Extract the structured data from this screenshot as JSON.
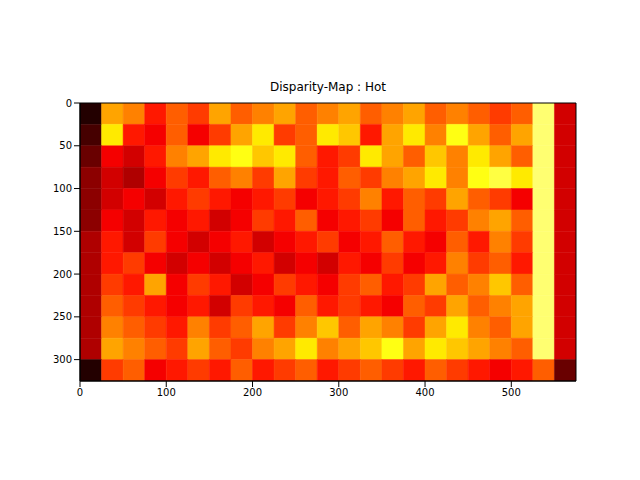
{
  "chart_data": {
    "type": "heatmap",
    "title": "Disparity-Map : Hot",
    "color": "hot",
    "xlim": [
      0,
      575
    ],
    "ylim": [
      325,
      0
    ],
    "xticks": [
      0,
      100,
      200,
      300,
      400,
      500
    ],
    "yticks": [
      0,
      50,
      100,
      150,
      200,
      250,
      300
    ],
    "color_range": [
      0,
      1
    ],
    "cells": [
      [
        0.05,
        0.6,
        0.55,
        0.4,
        0.5,
        0.45,
        0.6,
        0.5,
        0.55,
        0.6,
        0.5,
        0.55,
        0.6,
        0.5,
        0.55,
        0.6,
        0.5,
        0.55,
        0.5,
        0.45,
        0.5,
        0.85,
        0.3
      ],
      [
        0.1,
        0.7,
        0.4,
        0.35,
        0.5,
        0.35,
        0.45,
        0.6,
        0.7,
        0.45,
        0.5,
        0.7,
        0.65,
        0.4,
        0.6,
        0.7,
        0.55,
        0.75,
        0.6,
        0.5,
        0.6,
        0.85,
        0.3
      ],
      [
        0.15,
        0.35,
        0.3,
        0.4,
        0.55,
        0.6,
        0.7,
        0.75,
        0.65,
        0.7,
        0.5,
        0.4,
        0.45,
        0.7,
        0.6,
        0.5,
        0.65,
        0.55,
        0.7,
        0.6,
        0.5,
        0.85,
        0.3
      ],
      [
        0.2,
        0.3,
        0.25,
        0.35,
        0.45,
        0.4,
        0.5,
        0.55,
        0.45,
        0.6,
        0.45,
        0.4,
        0.5,
        0.45,
        0.55,
        0.6,
        0.7,
        0.55,
        0.75,
        0.8,
        0.7,
        0.85,
        0.3
      ],
      [
        0.2,
        0.3,
        0.35,
        0.3,
        0.4,
        0.45,
        0.4,
        0.35,
        0.4,
        0.45,
        0.35,
        0.4,
        0.45,
        0.55,
        0.4,
        0.5,
        0.45,
        0.6,
        0.5,
        0.45,
        0.35,
        0.85,
        0.3
      ],
      [
        0.2,
        0.35,
        0.3,
        0.4,
        0.35,
        0.4,
        0.3,
        0.35,
        0.45,
        0.4,
        0.5,
        0.35,
        0.4,
        0.45,
        0.35,
        0.5,
        0.4,
        0.45,
        0.55,
        0.6,
        0.5,
        0.85,
        0.3
      ],
      [
        0.25,
        0.4,
        0.3,
        0.45,
        0.35,
        0.3,
        0.35,
        0.4,
        0.3,
        0.35,
        0.4,
        0.45,
        0.35,
        0.4,
        0.5,
        0.4,
        0.35,
        0.5,
        0.4,
        0.55,
        0.45,
        0.85,
        0.3
      ],
      [
        0.25,
        0.4,
        0.45,
        0.35,
        0.3,
        0.35,
        0.3,
        0.35,
        0.4,
        0.3,
        0.35,
        0.3,
        0.4,
        0.35,
        0.45,
        0.35,
        0.4,
        0.55,
        0.45,
        0.5,
        0.4,
        0.85,
        0.3
      ],
      [
        0.25,
        0.45,
        0.4,
        0.6,
        0.35,
        0.45,
        0.4,
        0.3,
        0.35,
        0.45,
        0.4,
        0.35,
        0.45,
        0.5,
        0.4,
        0.45,
        0.6,
        0.5,
        0.55,
        0.65,
        0.5,
        0.85,
        0.3
      ],
      [
        0.25,
        0.5,
        0.45,
        0.4,
        0.35,
        0.4,
        0.3,
        0.45,
        0.4,
        0.35,
        0.5,
        0.4,
        0.45,
        0.4,
        0.35,
        0.5,
        0.45,
        0.6,
        0.5,
        0.55,
        0.6,
        0.85,
        0.3
      ],
      [
        0.25,
        0.55,
        0.5,
        0.45,
        0.4,
        0.55,
        0.45,
        0.5,
        0.6,
        0.45,
        0.55,
        0.65,
        0.5,
        0.6,
        0.55,
        0.45,
        0.6,
        0.7,
        0.55,
        0.5,
        0.6,
        0.85,
        0.3
      ],
      [
        0.25,
        0.6,
        0.55,
        0.5,
        0.45,
        0.6,
        0.5,
        0.45,
        0.55,
        0.6,
        0.7,
        0.55,
        0.6,
        0.65,
        0.75,
        0.6,
        0.7,
        0.65,
        0.6,
        0.55,
        0.5,
        0.85,
        0.3
      ],
      [
        0.05,
        0.45,
        0.5,
        0.35,
        0.4,
        0.45,
        0.4,
        0.5,
        0.4,
        0.45,
        0.5,
        0.4,
        0.45,
        0.5,
        0.45,
        0.4,
        0.5,
        0.45,
        0.4,
        0.35,
        0.4,
        0.5,
        0.15
      ]
    ]
  }
}
